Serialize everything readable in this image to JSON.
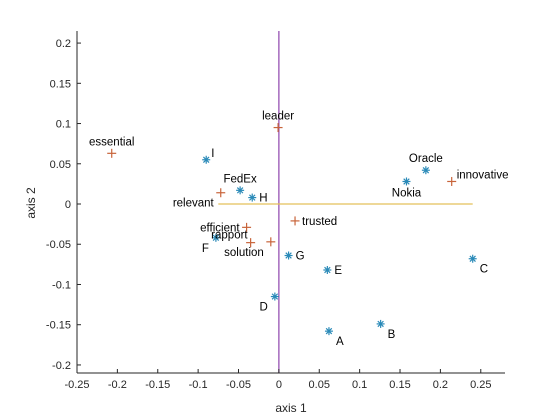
{
  "chart_data": {
    "type": "scatter",
    "xlabel": "axis 1",
    "ylabel": "axis 2",
    "xlim": [
      -0.25,
      0.28
    ],
    "ylim": [
      -0.21,
      0.215
    ],
    "x_ticks": [
      -0.25,
      -0.2,
      -0.15,
      -0.1,
      -0.05,
      0,
      0.05,
      0.1,
      0.15,
      0.2,
      0.25
    ],
    "x_tick_labels": [
      "-0.25",
      "-0.2",
      "-0.15",
      "-0.1",
      "-0.05",
      "0",
      "0.05",
      "0.1",
      "0.15",
      "0.2",
      "0.25"
    ],
    "y_ticks": [
      -0.2,
      -0.15,
      -0.1,
      -0.05,
      0,
      0.05,
      0.1,
      0.15,
      0.2
    ],
    "y_tick_labels": [
      "-0.2",
      "-0.15",
      "-0.1",
      "-0.05",
      "0",
      "0.05",
      "0.1",
      "0.15",
      "0.2"
    ],
    "grid": false,
    "colors": {
      "star_marker": "#2a8ab8",
      "plus_marker": "#c8643a",
      "vertical_line": "#8e44ad",
      "horizontal_line": "#e3c05a",
      "axes": "#262626"
    },
    "reference_lines": [
      {
        "orientation": "vertical",
        "x": 0,
        "y_from": -0.21,
        "y_to": 0.215,
        "color": "#8e44ad"
      },
      {
        "orientation": "horizontal",
        "y": 0,
        "x_from": -0.075,
        "x_to": 0.24,
        "color": "#e3c05a"
      }
    ],
    "series": [
      {
        "marker": "star",
        "color": "#2a8ab8",
        "points": [
          {
            "label": "A",
            "x": 0.062,
            "y": -0.158,
            "anchor": "below-right"
          },
          {
            "label": "B",
            "x": 0.126,
            "y": -0.149,
            "anchor": "below-right"
          },
          {
            "label": "C",
            "x": 0.24,
            "y": -0.068,
            "anchor": "below-right"
          },
          {
            "label": "D",
            "x": -0.005,
            "y": -0.115,
            "anchor": "below-left"
          },
          {
            "label": "E",
            "x": 0.06,
            "y": -0.082,
            "anchor": "right"
          },
          {
            "label": "F",
            "x": -0.078,
            "y": -0.042,
            "anchor": "below-left"
          },
          {
            "label": "G",
            "x": 0.012,
            "y": -0.064,
            "anchor": "right"
          },
          {
            "label": "H",
            "x": -0.033,
            "y": 0.008,
            "anchor": "right"
          },
          {
            "label": "I",
            "x": -0.09,
            "y": 0.055,
            "anchor": "above-right"
          },
          {
            "label": "FedEx",
            "x": -0.048,
            "y": 0.017,
            "anchor": "above"
          },
          {
            "label": "Nokia",
            "x": 0.158,
            "y": 0.028,
            "anchor": "below"
          },
          {
            "label": "Oracle",
            "x": 0.182,
            "y": 0.042,
            "anchor": "above"
          }
        ]
      },
      {
        "marker": "plus",
        "color": "#c8643a",
        "points": [
          {
            "label": "essential",
            "x": -0.207,
            "y": 0.063,
            "anchor": "above"
          },
          {
            "label": "leader",
            "x": -0.001,
            "y": 0.095,
            "anchor": "above"
          },
          {
            "label": "innovative",
            "x": 0.214,
            "y": 0.028,
            "anchor": "above-right"
          },
          {
            "label": "relevant",
            "x": -0.072,
            "y": 0.014,
            "anchor": "below-left"
          },
          {
            "label": "efficient",
            "x": -0.04,
            "y": -0.029,
            "anchor": "left"
          },
          {
            "label": "trusted",
            "x": 0.02,
            "y": -0.021,
            "anchor": "right"
          },
          {
            "label": "rapport",
            "x": -0.035,
            "y": -0.048,
            "anchor": "above-left"
          },
          {
            "label": "solution",
            "x": -0.01,
            "y": -0.047,
            "anchor": "below-left"
          }
        ]
      }
    ]
  }
}
